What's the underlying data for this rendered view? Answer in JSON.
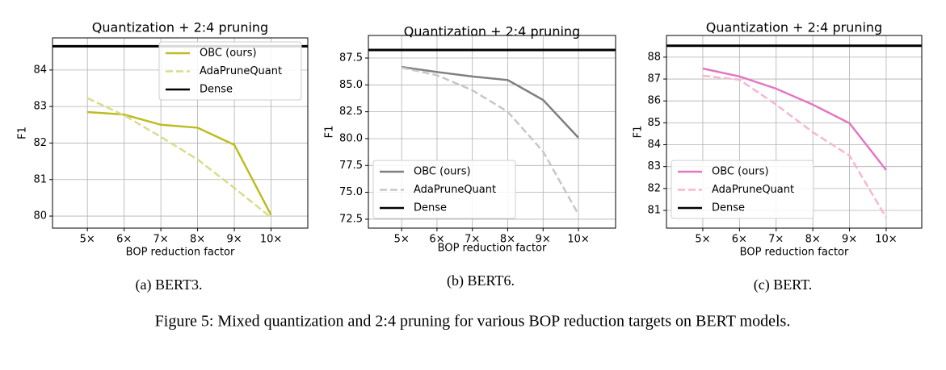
{
  "chart_data": [
    {
      "type": "line",
      "title": "Quantization + 2:4 pruning",
      "xlabel": "BOP reduction factor",
      "ylabel": "F1",
      "x": [
        5,
        6,
        7,
        8,
        9,
        10
      ],
      "series": [
        {
          "name": "OBC (ours)",
          "color": "#bcbd22",
          "dash": false,
          "values": [
            82.85,
            82.78,
            82.5,
            82.42,
            81.95,
            80.03
          ]
        },
        {
          "name": "AdaPruneQuant",
          "color": "#dbdb8d",
          "dash": true,
          "values": [
            83.23,
            82.76,
            82.17,
            81.55,
            80.77,
            79.96
          ]
        }
      ],
      "reference_line": {
        "name": "Dense",
        "color": "#000000",
        "value": 84.65
      },
      "xlim": [
        4.05,
        11.0
      ],
      "ylim": [
        79.67,
        84.88
      ],
      "xticks": [
        {
          "value": 5,
          "label": "5×"
        },
        {
          "value": 6,
          "label": "6×"
        },
        {
          "value": 7,
          "label": "7×"
        },
        {
          "value": 8,
          "label": "8×"
        },
        {
          "value": 9,
          "label": "9×"
        },
        {
          "value": 10,
          "label": "10×"
        }
      ],
      "yticks": [
        80,
        81,
        82,
        83,
        84
      ],
      "grid": true,
      "legend": "upper right",
      "caption": "(a) BERT3."
    },
    {
      "type": "line",
      "title": "Quantization + 2:4 pruning",
      "xlabel": "BOP reduction factor",
      "ylabel": "F1",
      "x": [
        5,
        6,
        7,
        8,
        9,
        10
      ],
      "series": [
        {
          "name": "OBC (ours)",
          "color": "#7f7f7f",
          "dash": false,
          "values": [
            86.67,
            86.2,
            85.78,
            85.45,
            83.6,
            80.08
          ]
        },
        {
          "name": "AdaPruneQuant",
          "color": "#c7c7c7",
          "dash": true,
          "values": [
            86.6,
            85.9,
            84.5,
            82.5,
            78.8,
            72.95
          ]
        }
      ],
      "reference_line": {
        "name": "Dense",
        "color": "#000000",
        "value": 88.25
      },
      "xlim": [
        4.06,
        11.05
      ],
      "ylim": [
        71.67,
        89.6
      ],
      "xticks": [
        {
          "value": 5,
          "label": "5×"
        },
        {
          "value": 6,
          "label": "6×"
        },
        {
          "value": 7,
          "label": "7×"
        },
        {
          "value": 8,
          "label": "8×"
        },
        {
          "value": 9,
          "label": "9×"
        },
        {
          "value": 10,
          "label": "10×"
        }
      ],
      "yticks": [
        72.5,
        {
          "value": 75,
          "label": "75.0"
        },
        77.5,
        {
          "value": 80,
          "label": "80.0"
        },
        82.5,
        {
          "value": 85,
          "label": "85.0"
        },
        87.5
      ],
      "grid": true,
      "legend": "lower left",
      "caption": "(b) BERT6."
    },
    {
      "type": "line",
      "title": "Quantization + 2:4 pruning",
      "xlabel": "BOP reduction factor",
      "ylabel": "F1",
      "x": [
        5,
        6,
        7,
        8,
        9,
        10
      ],
      "series": [
        {
          "name": "OBC (ours)",
          "color": "#e377c2",
          "dash": false,
          "values": [
            87.48,
            87.12,
            86.56,
            85.83,
            84.98,
            82.84
          ]
        },
        {
          "name": "AdaPruneQuant",
          "color": "#f7b6d2",
          "dash": true,
          "values": [
            87.15,
            86.97,
            85.83,
            84.57,
            83.5,
            80.67
          ]
        }
      ],
      "reference_line": {
        "name": "Dense",
        "color": "#000000",
        "value": 88.52
      },
      "xlim": [
        4.01,
        10.97
      ],
      "ylim": [
        80.19,
        88.99
      ],
      "xticks": [
        {
          "value": 5,
          "label": "5×"
        },
        {
          "value": 6,
          "label": "6×"
        },
        {
          "value": 7,
          "label": "7×"
        },
        {
          "value": 8,
          "label": "8×"
        },
        {
          "value": 9,
          "label": "9×"
        },
        {
          "value": 10,
          "label": "10×"
        }
      ],
      "yticks": [
        81,
        82,
        83,
        84,
        85,
        86,
        87,
        88
      ],
      "grid": true,
      "legend": "lower left",
      "caption": "(c) BERT."
    }
  ],
  "figure_caption": "Figure 5: Mixed quantization and 2:4 pruning for various BOP reduction targets on BERT models."
}
